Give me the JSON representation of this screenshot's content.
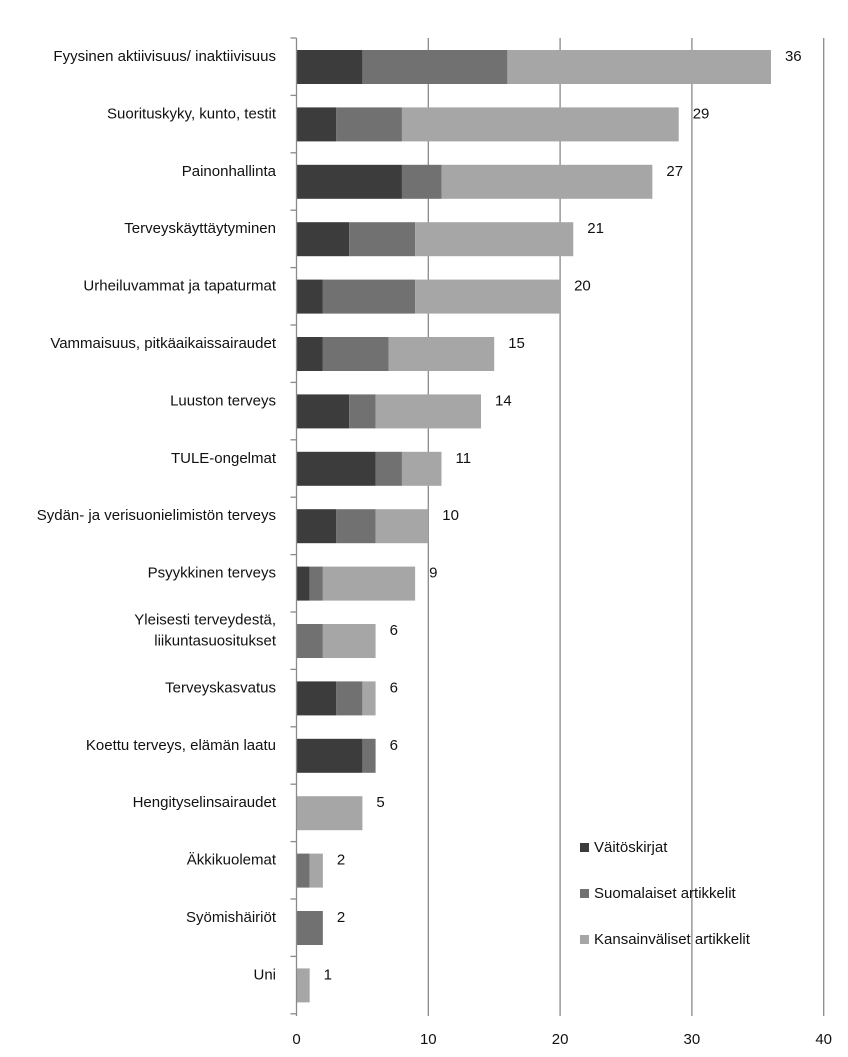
{
  "chart_data": {
    "type": "bar",
    "orientation": "horizontal",
    "stacked": true,
    "title": "",
    "xlabel": "",
    "ylabel": "",
    "xlim": [
      0,
      40
    ],
    "x_ticks": [
      "0",
      "10",
      "20",
      "30",
      "40"
    ],
    "grid": "vertical",
    "legend_position": "bottom-right",
    "categories": [
      [
        "Fyysinen aktiivisuus/ inaktiivisuus"
      ],
      [
        "Suorituskyky, kunto, testit"
      ],
      [
        "Painonhallinta"
      ],
      [
        "Terveyskäyttäytyminen"
      ],
      [
        "Urheiluvammat ja tapaturmat"
      ],
      [
        "Vammaisuus, pitkäaikaissairaudet"
      ],
      [
        "Luuston terveys"
      ],
      [
        "TULE-ongelmat"
      ],
      [
        "Sydän- ja verisuonielimistön terveys"
      ],
      [
        "Psyykkinen terveys"
      ],
      [
        "Yleisesti terveydestä,",
        "liikuntasuositukset"
      ],
      [
        "Terveyskasvatus"
      ],
      [
        "Koettu terveys, elämän laatu"
      ],
      [
        "Hengityselinsairaudet"
      ],
      [
        "Äkkikuolemat"
      ],
      [
        "Syömishäiriöt"
      ],
      [
        "Uni"
      ]
    ],
    "totals": [
      36,
      29,
      27,
      21,
      20,
      15,
      14,
      11,
      10,
      9,
      6,
      6,
      6,
      5,
      2,
      2,
      1
    ],
    "series": [
      {
        "name": "Väitöskirjat",
        "color": "#3c3c3c",
        "values": [
          5,
          3,
          8,
          4,
          2,
          2,
          4,
          6,
          3,
          1,
          0,
          3,
          5,
          0,
          0,
          0,
          0
        ]
      },
      {
        "name": "Suomalaiset artikkelit",
        "color": "#717171",
        "values": [
          11,
          5,
          3,
          5,
          7,
          5,
          2,
          2,
          3,
          1,
          2,
          2,
          1,
          0,
          1,
          2,
          0
        ]
      },
      {
        "name": "Kansainväliset artikkelit",
        "color": "#a6a6a6",
        "values": [
          20,
          21,
          16,
          12,
          11,
          8,
          8,
          3,
          4,
          7,
          4,
          1,
          0,
          5,
          1,
          0,
          1
        ]
      }
    ]
  }
}
